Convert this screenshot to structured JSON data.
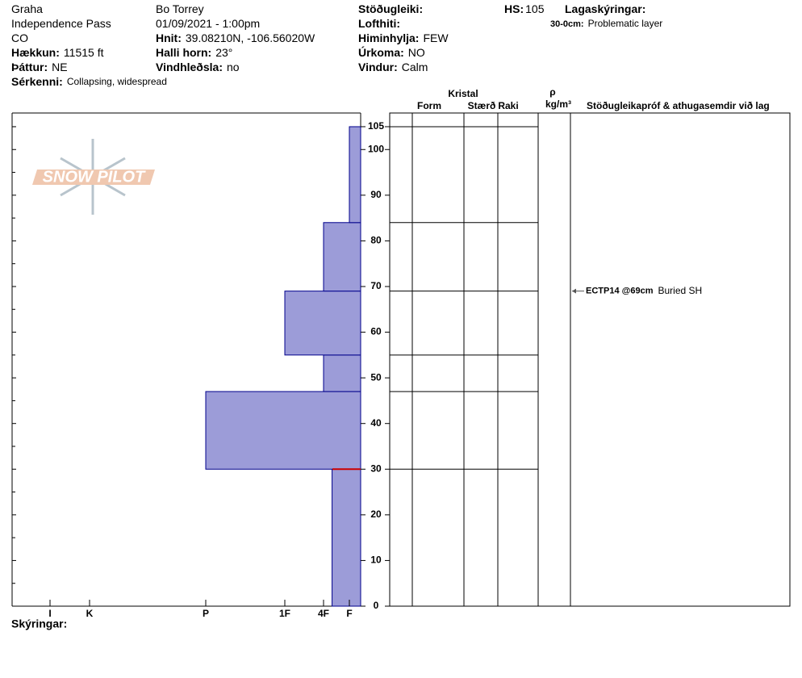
{
  "header": {
    "items": [
      {
        "value": "Graha"
      },
      {
        "value": "Independence Pass"
      },
      {
        "value": "CO"
      },
      {
        "label": "Hækkun:",
        "value": "11515 ft"
      },
      {
        "label": "Þáttur:",
        "value": "NE"
      },
      {
        "label": "Sérkenni:",
        "value": "Collapsing, widespread"
      },
      {
        "value": "Bo Torrey"
      },
      {
        "value": "01/09/2021 - 1:00pm"
      },
      {
        "label": "Hnit:",
        "value": "39.08210N, -106.56020W"
      },
      {
        "label": "Halli horn:",
        "value": "23°"
      },
      {
        "label": "Vindhleðsla:",
        "value": "no"
      },
      {
        "label": "Stöðugleiki:"
      },
      {
        "label": "Lofthiti:"
      },
      {
        "label": "Himinhylja:",
        "value": "FEW"
      },
      {
        "label": "Úrkoma:",
        "value": "NO"
      },
      {
        "label": "Vindur:",
        "value": "Calm"
      },
      {
        "label": "HS:",
        "value": "105"
      },
      {
        "label": "Lagaskýringar:"
      },
      {
        "label": "30-0cm:",
        "value": "Problematic layer"
      }
    ],
    "logo": "SNOW PILOT"
  },
  "chart_data": {
    "type": "snow-profile",
    "layers": [
      {
        "bottom": 0,
        "top": 30,
        "hardness": 1.67
      },
      {
        "bottom": 30,
        "top": 47,
        "hardness": 4
      },
      {
        "bottom": 47,
        "top": 55,
        "hardness": 2
      },
      {
        "bottom": 55,
        "top": 69,
        "hardness": 3
      },
      {
        "bottom": 69,
        "top": 84,
        "hardness": 2
      },
      {
        "bottom": 84,
        "top": 105,
        "hardness": 1
      }
    ],
    "color": "#9c9cd8",
    "ylim": [
      0,
      108
    ],
    "yticks": [
      0,
      10,
      20,
      30,
      40,
      50,
      60,
      70,
      80,
      90,
      100,
      105
    ],
    "xlim": [
      0,
      6
    ],
    "xticks": [
      {
        "value": 6,
        "label": "I"
      },
      {
        "value": 5,
        "label": "K"
      },
      {
        "value": 4,
        "label": "P"
      },
      {
        "value": 3,
        "label": "1F"
      },
      {
        "value": 2,
        "label": "4F"
      },
      {
        "value": 1,
        "label": "F"
      }
    ],
    "columns": {
      "group": "Kristal",
      "form": "Form",
      "size": "Stærð",
      "moisture": "Raki",
      "density": "ρ",
      "density_unit": "kg/m³",
      "comments": "Stöðugleikapróf & athugasemdir við lag"
    },
    "tests": [
      {
        "label": "ECTP14 @69cm",
        "depth": 69,
        "comment": "Buried SH"
      }
    ],
    "footer": "Skýringar:"
  }
}
